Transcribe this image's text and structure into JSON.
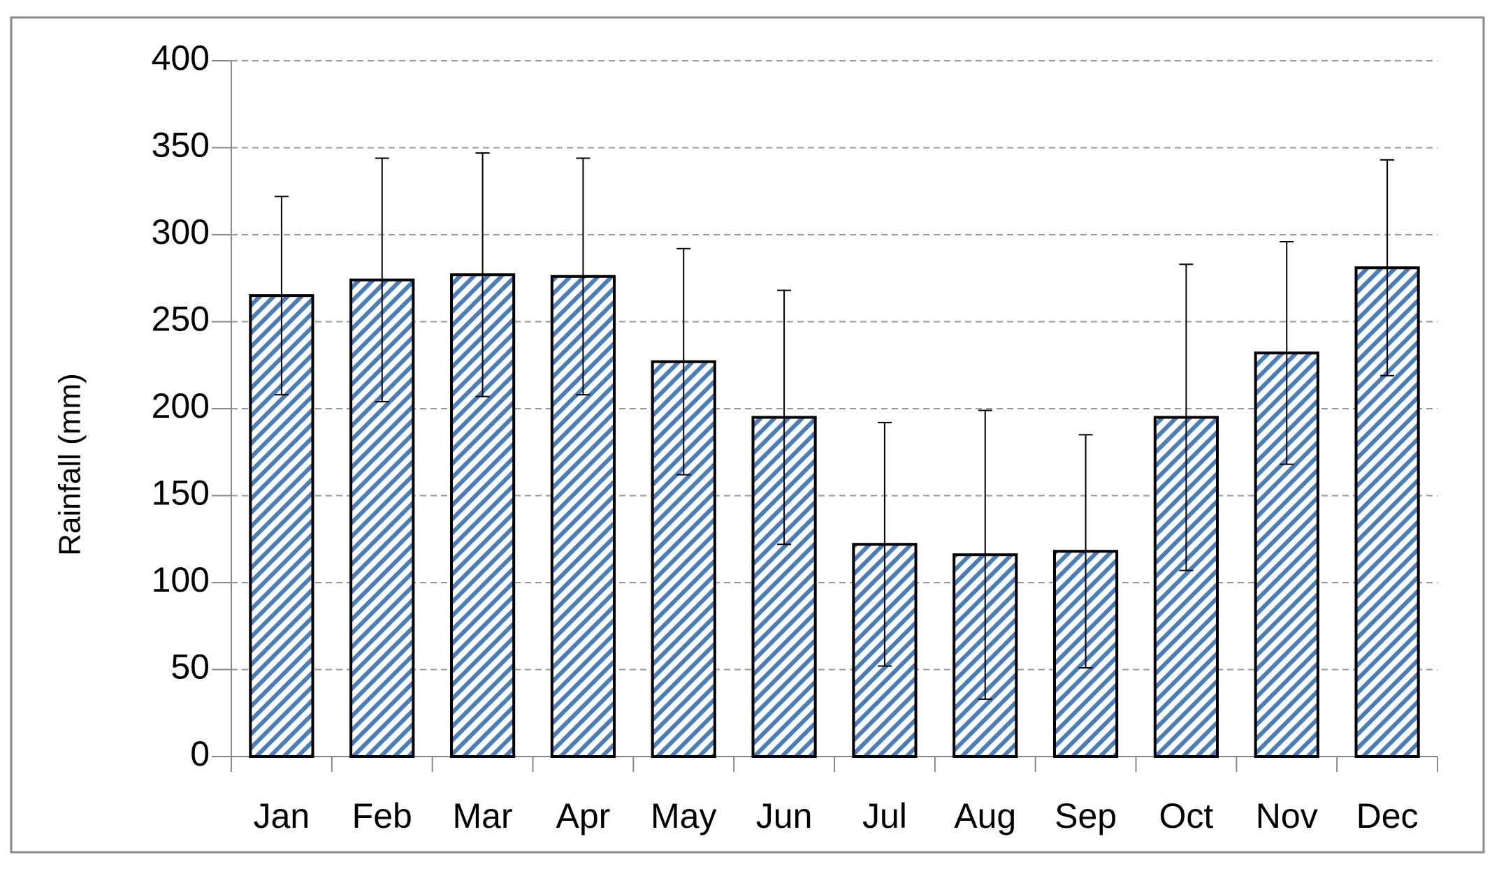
{
  "chart_data": {
    "type": "bar",
    "y_label": "Rainfall (mm)",
    "categories": [
      "Jan",
      "Feb",
      "Mar",
      "Apr",
      "May",
      "Jun",
      "Jul",
      "Aug",
      "Sep",
      "Oct",
      "Nov",
      "Dec"
    ],
    "values": [
      265,
      274,
      277,
      276,
      227,
      195,
      122,
      116,
      118,
      195,
      232,
      281
    ],
    "errors": [
      57,
      70,
      70,
      68,
      65,
      73,
      70,
      83,
      67,
      88,
      64,
      62
    ],
    "color": "#4a7ebb",
    "ylim": [
      0,
      400
    ],
    "yticks": [
      0,
      50,
      100,
      150,
      200,
      250,
      300,
      350,
      400
    ],
    "grid": true
  }
}
